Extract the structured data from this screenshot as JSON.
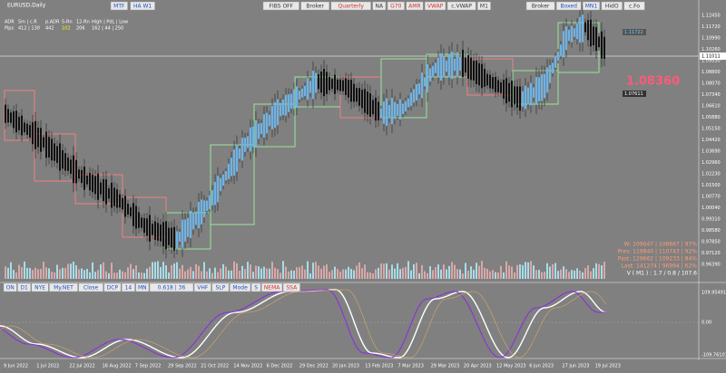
{
  "symbol": "EURUSD,Daily",
  "toolbar_left": [
    "MTF",
    "HA W1"
  ],
  "toolbar_center": [
    "FIBS OFF",
    "Broker",
    "Quarterly",
    "NA",
    "G70",
    "AMR",
    "VWAP",
    "c.VWAP",
    "M1"
  ],
  "toolbar_right": [
    "Broker",
    "Boxed",
    "MN1",
    "HidO",
    "c.Fo"
  ],
  "stats": {
    "header": [
      "ADR",
      "5m | c.R",
      "p.ADR",
      "5-Rn",
      "12-Rn",
      "High | PdL | Low"
    ],
    "row": [
      "Pips",
      "412 | 130",
      "442",
      "102",
      "206",
      "162 | 44 | 250"
    ]
  },
  "price_axis": [
    "1.12450",
    "1.11720",
    "1.10990",
    "1.10260",
    "1.09530",
    "1.08800",
    "1.08070",
    "1.07340",
    "1.06610",
    "1.05880",
    "1.05150",
    "1.04420",
    "1.03690",
    "1.02960",
    "1.02230",
    "1.01500",
    "1.00770",
    "1.00040",
    "0.99310",
    "0.98580",
    "0.97850",
    "0.97120",
    "0.96390"
  ],
  "current_price": "1.11011",
  "big_price": "1.08360",
  "level_labels": [
    "1.11722",
    "1.07611"
  ],
  "info_panel": [
    "W: 109047 | 106667 | 97%",
    "Prev: 119840 | 110743 | 92%",
    "Past: 129662 | 109233 | 84%",
    "Last: 141274 | 96994 | 62%",
    "V ( M1 ) : 1.7 / 0.8 / 107.6"
  ],
  "osc_toolbar": [
    "ON",
    "D1",
    "NYE",
    "My.NET",
    "Close",
    "DCP",
    "14",
    "MN",
    "0.618 | 36",
    "VHF",
    "SLP",
    "Mode",
    "S",
    "NEMA",
    "SSA"
  ],
  "osc_axis": [
    "109.95491",
    "0.00",
    "-109.76101"
  ],
  "date_axis": [
    "9 Jun 2022",
    "1 Jul 2022",
    "22 Jul 2022",
    "16 Aug 2022",
    "7 Sep 2022",
    "29 Sep 2022",
    "21 Oct 2022",
    "14 Nov 2022",
    "6 Dec 2022",
    "29 Dec 2022",
    "20 Jan 2023",
    "13 Feb 2023",
    "7 Mar 2023",
    "29 Mar 2023",
    "20 Apr 2023",
    "12 May 2023",
    "6 Jun 2023",
    "27 Jun 2023",
    "19 Jul 2023"
  ]
}
